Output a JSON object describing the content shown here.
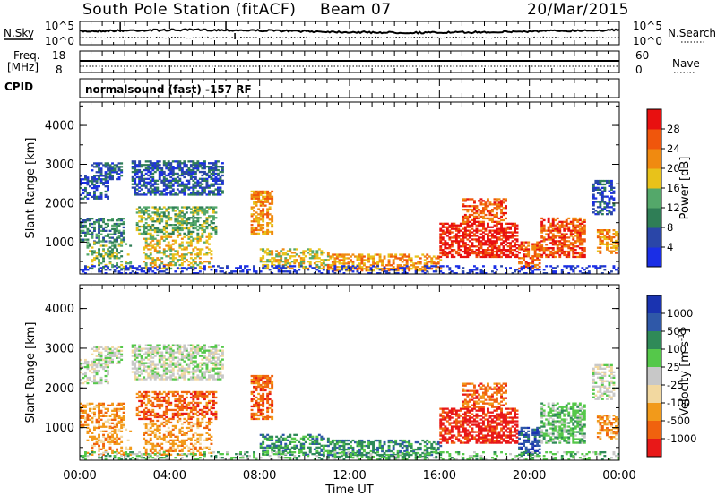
{
  "header": {
    "station": "South Pole Station (fitACF)",
    "beam": "Beam 07",
    "date": "20/Mar/2015"
  },
  "strip_labels": {
    "nsky": "N.Sky",
    "nsky_top": "10^5",
    "nsky_bottom": "10^0",
    "nsearch": "N.Search",
    "nsearch_top": "10^5",
    "nsearch_bottom": "10^0",
    "freq_line1": "Freq.",
    "freq_line2": "[MHz]",
    "freq_top": "18",
    "freq_bottom": "8",
    "nave": "Nave",
    "nave_top": "60",
    "nave_bottom": "0",
    "cpid": "CPID",
    "cpid_text": "normalsound (fast) -157 RF"
  },
  "colors": {
    "power": [
      "#1a2ee6",
      "#2a46a8",
      "#2f7e56",
      "#54a86a",
      "#e8c21a",
      "#f08a10",
      "#f0560c",
      "#e81010"
    ],
    "velocity": [
      "#1a33b0",
      "#2f58a8",
      "#2f8a58",
      "#55c84a",
      "#c8c8c8",
      "#f2d8a0",
      "#f29a1a",
      "#f0620e",
      "#e81818"
    ]
  },
  "chart_data": [
    {
      "type": "heatmap",
      "name": "power",
      "xlabel": "Time UT",
      "ylabel": "Slant Range [km]",
      "x_ticks": [
        "00:00",
        "04:00",
        "08:00",
        "12:00",
        "16:00",
        "20:00",
        "00:00"
      ],
      "x_range_hours": [
        0,
        24
      ],
      "y_range_km": [
        180,
        4600
      ],
      "y_ticks": [
        1000,
        2000,
        3000,
        4000
      ],
      "colorbar_label": "Power [dB]",
      "colorbar_ticks": [
        4,
        8,
        12,
        16,
        20,
        24,
        28
      ],
      "colorbar_range": [
        0,
        32
      ]
    },
    {
      "type": "heatmap",
      "name": "velocity",
      "xlabel": "Time UT",
      "ylabel": "Slant Range [km]",
      "x_ticks": [
        "00:00",
        "04:00",
        "08:00",
        "12:00",
        "16:00",
        "20:00",
        "00:00"
      ],
      "x_range_hours": [
        0,
        24
      ],
      "y_range_km": [
        180,
        4600
      ],
      "y_ticks": [
        1000,
        2000,
        3000,
        4000
      ],
      "colorbar_label": "Velocity [m s^-1]",
      "colorbar_ticks": [
        1000,
        500,
        100,
        25,
        -25,
        -100,
        -500,
        -1000
      ]
    }
  ]
}
